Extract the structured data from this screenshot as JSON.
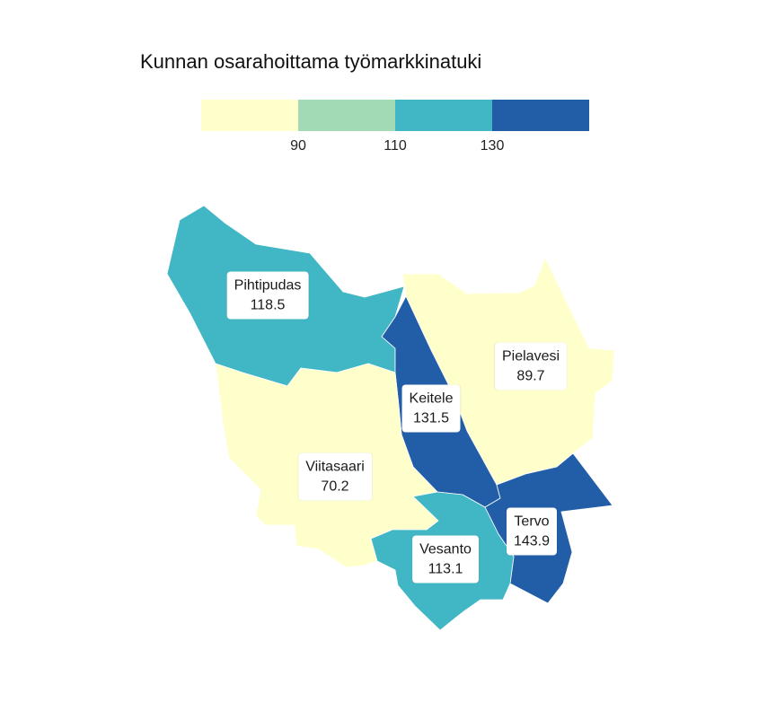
{
  "map": {
    "title": "Kunnan osarahoittama työmarkkinatuki",
    "legend": {
      "bins": [
        {
          "color": "#ffffcc"
        },
        {
          "color": "#a1dab4"
        },
        {
          "color": "#41b6c4"
        },
        {
          "color": "#225ea8"
        }
      ],
      "ticks": [
        "90",
        "110",
        "130"
      ]
    },
    "regions": {
      "pihtipudas": {
        "name": "Pihtipudas",
        "value": "118.5",
        "color": "#41b6c4"
      },
      "pielavesi": {
        "name": "Pielavesi",
        "value": "89.7",
        "color": "#ffffcc"
      },
      "keitele": {
        "name": "Keitele",
        "value": "131.5",
        "color": "#225ea8"
      },
      "viitasaari": {
        "name": "Viitasaari",
        "value": "70.2",
        "color": "#ffffcc"
      },
      "tervo": {
        "name": "Tervo",
        "value": "143.9",
        "color": "#225ea8"
      },
      "vesanto": {
        "name": "Vesanto",
        "value": "113.1",
        "color": "#41b6c4"
      }
    }
  }
}
